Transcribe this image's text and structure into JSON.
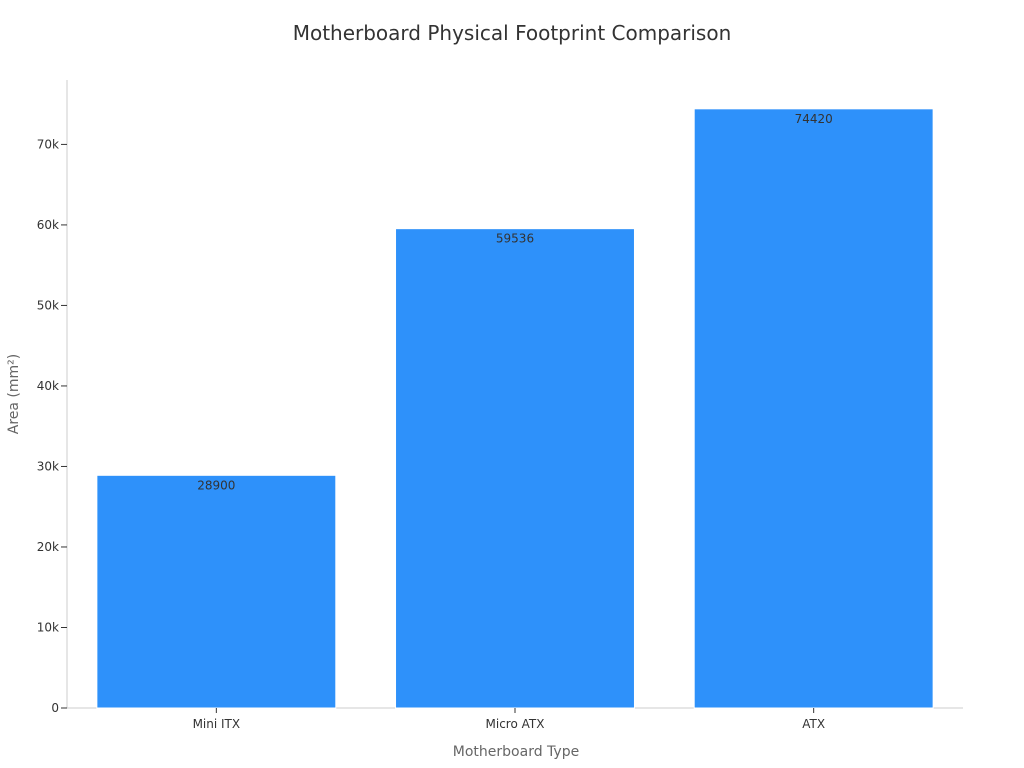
{
  "chart_data": {
    "type": "bar",
    "title": "Motherboard Physical Footprint Comparison",
    "xlabel": "Motherboard Type",
    "ylabel": "Area (mm²)",
    "categories": [
      "Mini ITX",
      "Micro ATX",
      "ATX"
    ],
    "values": [
      28900,
      59536,
      74420
    ],
    "data_labels": [
      "28900",
      "59536",
      "74420"
    ],
    "ylim": [
      0,
      78000
    ],
    "yticks": [
      0,
      10000,
      20000,
      30000,
      40000,
      50000,
      60000,
      70000
    ],
    "ytick_labels": [
      "0",
      "10k",
      "20k",
      "30k",
      "40k",
      "50k",
      "60k",
      "70k"
    ],
    "bar_color": "#2e91fa",
    "grid": false,
    "legend": "none"
  }
}
